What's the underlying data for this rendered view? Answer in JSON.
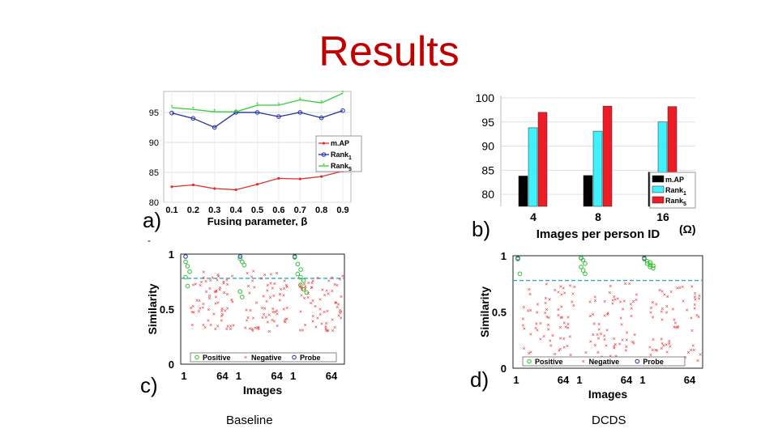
{
  "slide": {
    "title": "Results",
    "panel_letters": {
      "a": "a)",
      "b": "b)",
      "c": "c)",
      "d": "d)"
    },
    "stray_mark": "-",
    "omega_note": "(Ω)",
    "caption_left": "Baseline",
    "caption_right": "DCDS",
    "colors": {
      "title": "#c00000"
    }
  },
  "chart_data": [
    {
      "id": "a",
      "type": "line",
      "x": [
        0.1,
        0.2,
        0.3,
        0.4,
        0.5,
        0.6,
        0.7,
        0.8,
        0.9
      ],
      "xticks": [
        "0.1",
        "0.2",
        "0.3",
        "0.4",
        "0.5",
        "0.6",
        "0.7",
        "0.8",
        "0.9"
      ],
      "yticks": [
        80,
        85,
        90,
        95
      ],
      "ylim": [
        80,
        98.5
      ],
      "xlabel": "Fusing parameter, β",
      "legend_position": "right",
      "grid": true,
      "series": [
        {
          "name": "m.AP",
          "subscript": "",
          "color": "#e03030",
          "marker": "dot",
          "values": [
            82.6,
            82.9,
            82.3,
            82.1,
            83.0,
            84.0,
            83.9,
            84.3,
            85.2
          ]
        },
        {
          "name": "Rank",
          "subscript": "1",
          "color": "#2030a0",
          "marker": "circle",
          "values": [
            94.9,
            94.0,
            92.5,
            95.0,
            95.0,
            94.3,
            95.0,
            94.1,
            95.3
          ]
        },
        {
          "name": "Rank",
          "subscript": "5",
          "color": "#30d030",
          "marker": "star",
          "values": [
            95.8,
            95.5,
            95.1,
            95.1,
            96.2,
            96.2,
            97.1,
            96.6,
            98.2
          ]
        }
      ]
    },
    {
      "id": "b",
      "type": "bar",
      "categories": [
        "4",
        "8",
        "16"
      ],
      "xlabel": "Images per person ID",
      "yticks": [
        80,
        85,
        90,
        95,
        100
      ],
      "ylim": [
        77.5,
        100.5
      ],
      "legend_position": "bottom-right",
      "grid": true,
      "series": [
        {
          "name": "m.AP",
          "subscript": "",
          "color": "#000000",
          "values": [
            83.8,
            83.9,
            84.6
          ]
        },
        {
          "name": "Rank",
          "subscript": "1",
          "color": "#3ff0ff",
          "values": [
            93.8,
            93.1,
            95.0
          ]
        },
        {
          "name": "Rank",
          "subscript": "5",
          "color": "#ee1c24",
          "values": [
            97.0,
            98.3,
            98.2
          ]
        }
      ]
    },
    {
      "id": "c",
      "type": "scatter",
      "caption": "Baseline",
      "xlabel": "Images",
      "ylabel": "Similarity",
      "group_tick_labels": [
        "1",
        "64",
        "1",
        "64",
        "1",
        "64"
      ],
      "yticks": [
        "0",
        "0.5",
        "1"
      ],
      "ylim": [
        0,
        1
      ],
      "threshold": 0.78,
      "legend_position": "bottom",
      "legend": [
        {
          "name": "Positive",
          "color": "#30c030",
          "marker": "circle"
        },
        {
          "name": "Negative",
          "color": "#e03030",
          "marker": "x"
        },
        {
          "name": "Probe",
          "color": "#2030a0",
          "marker": "circle"
        }
      ],
      "groups": [
        {
          "probe": 1.0,
          "positives": [
            0.93,
            0.89,
            0.84,
            0.79,
            0.71
          ],
          "negatives": {
            "count": 64,
            "range": [
              0.3,
              0.85
            ]
          }
        },
        {
          "probe": 1.0,
          "positives": [
            0.96,
            0.93,
            0.9,
            0.66,
            0.61
          ],
          "negatives": {
            "count": 64,
            "range": [
              0.28,
              0.85
            ]
          }
        },
        {
          "probe": 1.0,
          "positives": [
            0.97,
            0.91,
            0.86,
            0.82,
            0.79,
            0.76,
            0.72,
            0.68,
            0.65
          ],
          "negatives": {
            "count": 64,
            "range": [
              0.3,
              0.82
            ]
          }
        }
      ]
    },
    {
      "id": "d",
      "type": "scatter",
      "caption": "DCDS",
      "xlabel": "Images",
      "ylabel": "Similarity",
      "group_tick_labels": [
        "1",
        "64",
        "1",
        "64",
        "1",
        "64"
      ],
      "yticks": [
        "0",
        "0.5",
        "1"
      ],
      "ylim": [
        0,
        1
      ],
      "threshold": 0.78,
      "legend_position": "bottom",
      "legend": [
        {
          "name": "Positive",
          "color": "#30c030",
          "marker": "circle"
        },
        {
          "name": "Negative",
          "color": "#e03030",
          "marker": "x"
        },
        {
          "name": "Probe",
          "color": "#2030a0",
          "marker": "circle"
        }
      ],
      "groups": [
        {
          "probe": 1.0,
          "positives": [
            0.97,
            0.84
          ],
          "negatives": {
            "count": 64,
            "range": [
              0.1,
              0.76
            ]
          }
        },
        {
          "probe": 1.0,
          "positives": [
            0.98,
            0.96,
            0.93,
            0.9,
            0.87,
            0.84
          ],
          "negatives": {
            "count": 64,
            "range": [
              0.05,
              0.76
            ]
          }
        },
        {
          "probe": 1.0,
          "positives": [
            0.97,
            0.95,
            0.94,
            0.93,
            0.92,
            0.91,
            0.9,
            0.89
          ],
          "negatives": {
            "count": 64,
            "range": [
              0.05,
              0.76
            ]
          }
        }
      ]
    }
  ]
}
